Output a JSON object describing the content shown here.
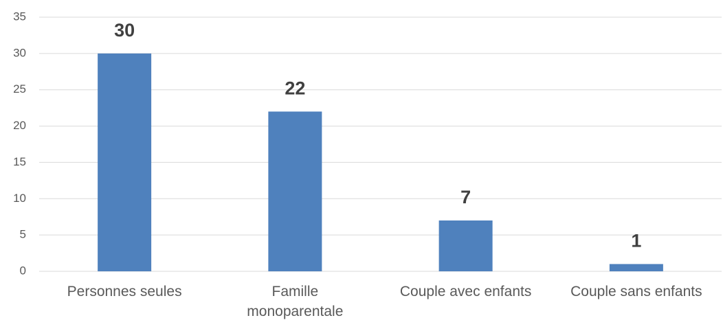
{
  "chart_data": {
    "type": "bar",
    "categories": [
      "Personnes seules",
      "Famille monoparentale",
      "Couple avec enfants",
      "Couple sans enfants"
    ],
    "values": [
      30,
      22,
      7,
      1
    ],
    "color": "#4f81bd",
    "ylim": [
      0,
      35
    ],
    "yticks": [
      0,
      5,
      10,
      15,
      20,
      25,
      30,
      35
    ],
    "grid": true,
    "data_labels": true
  }
}
